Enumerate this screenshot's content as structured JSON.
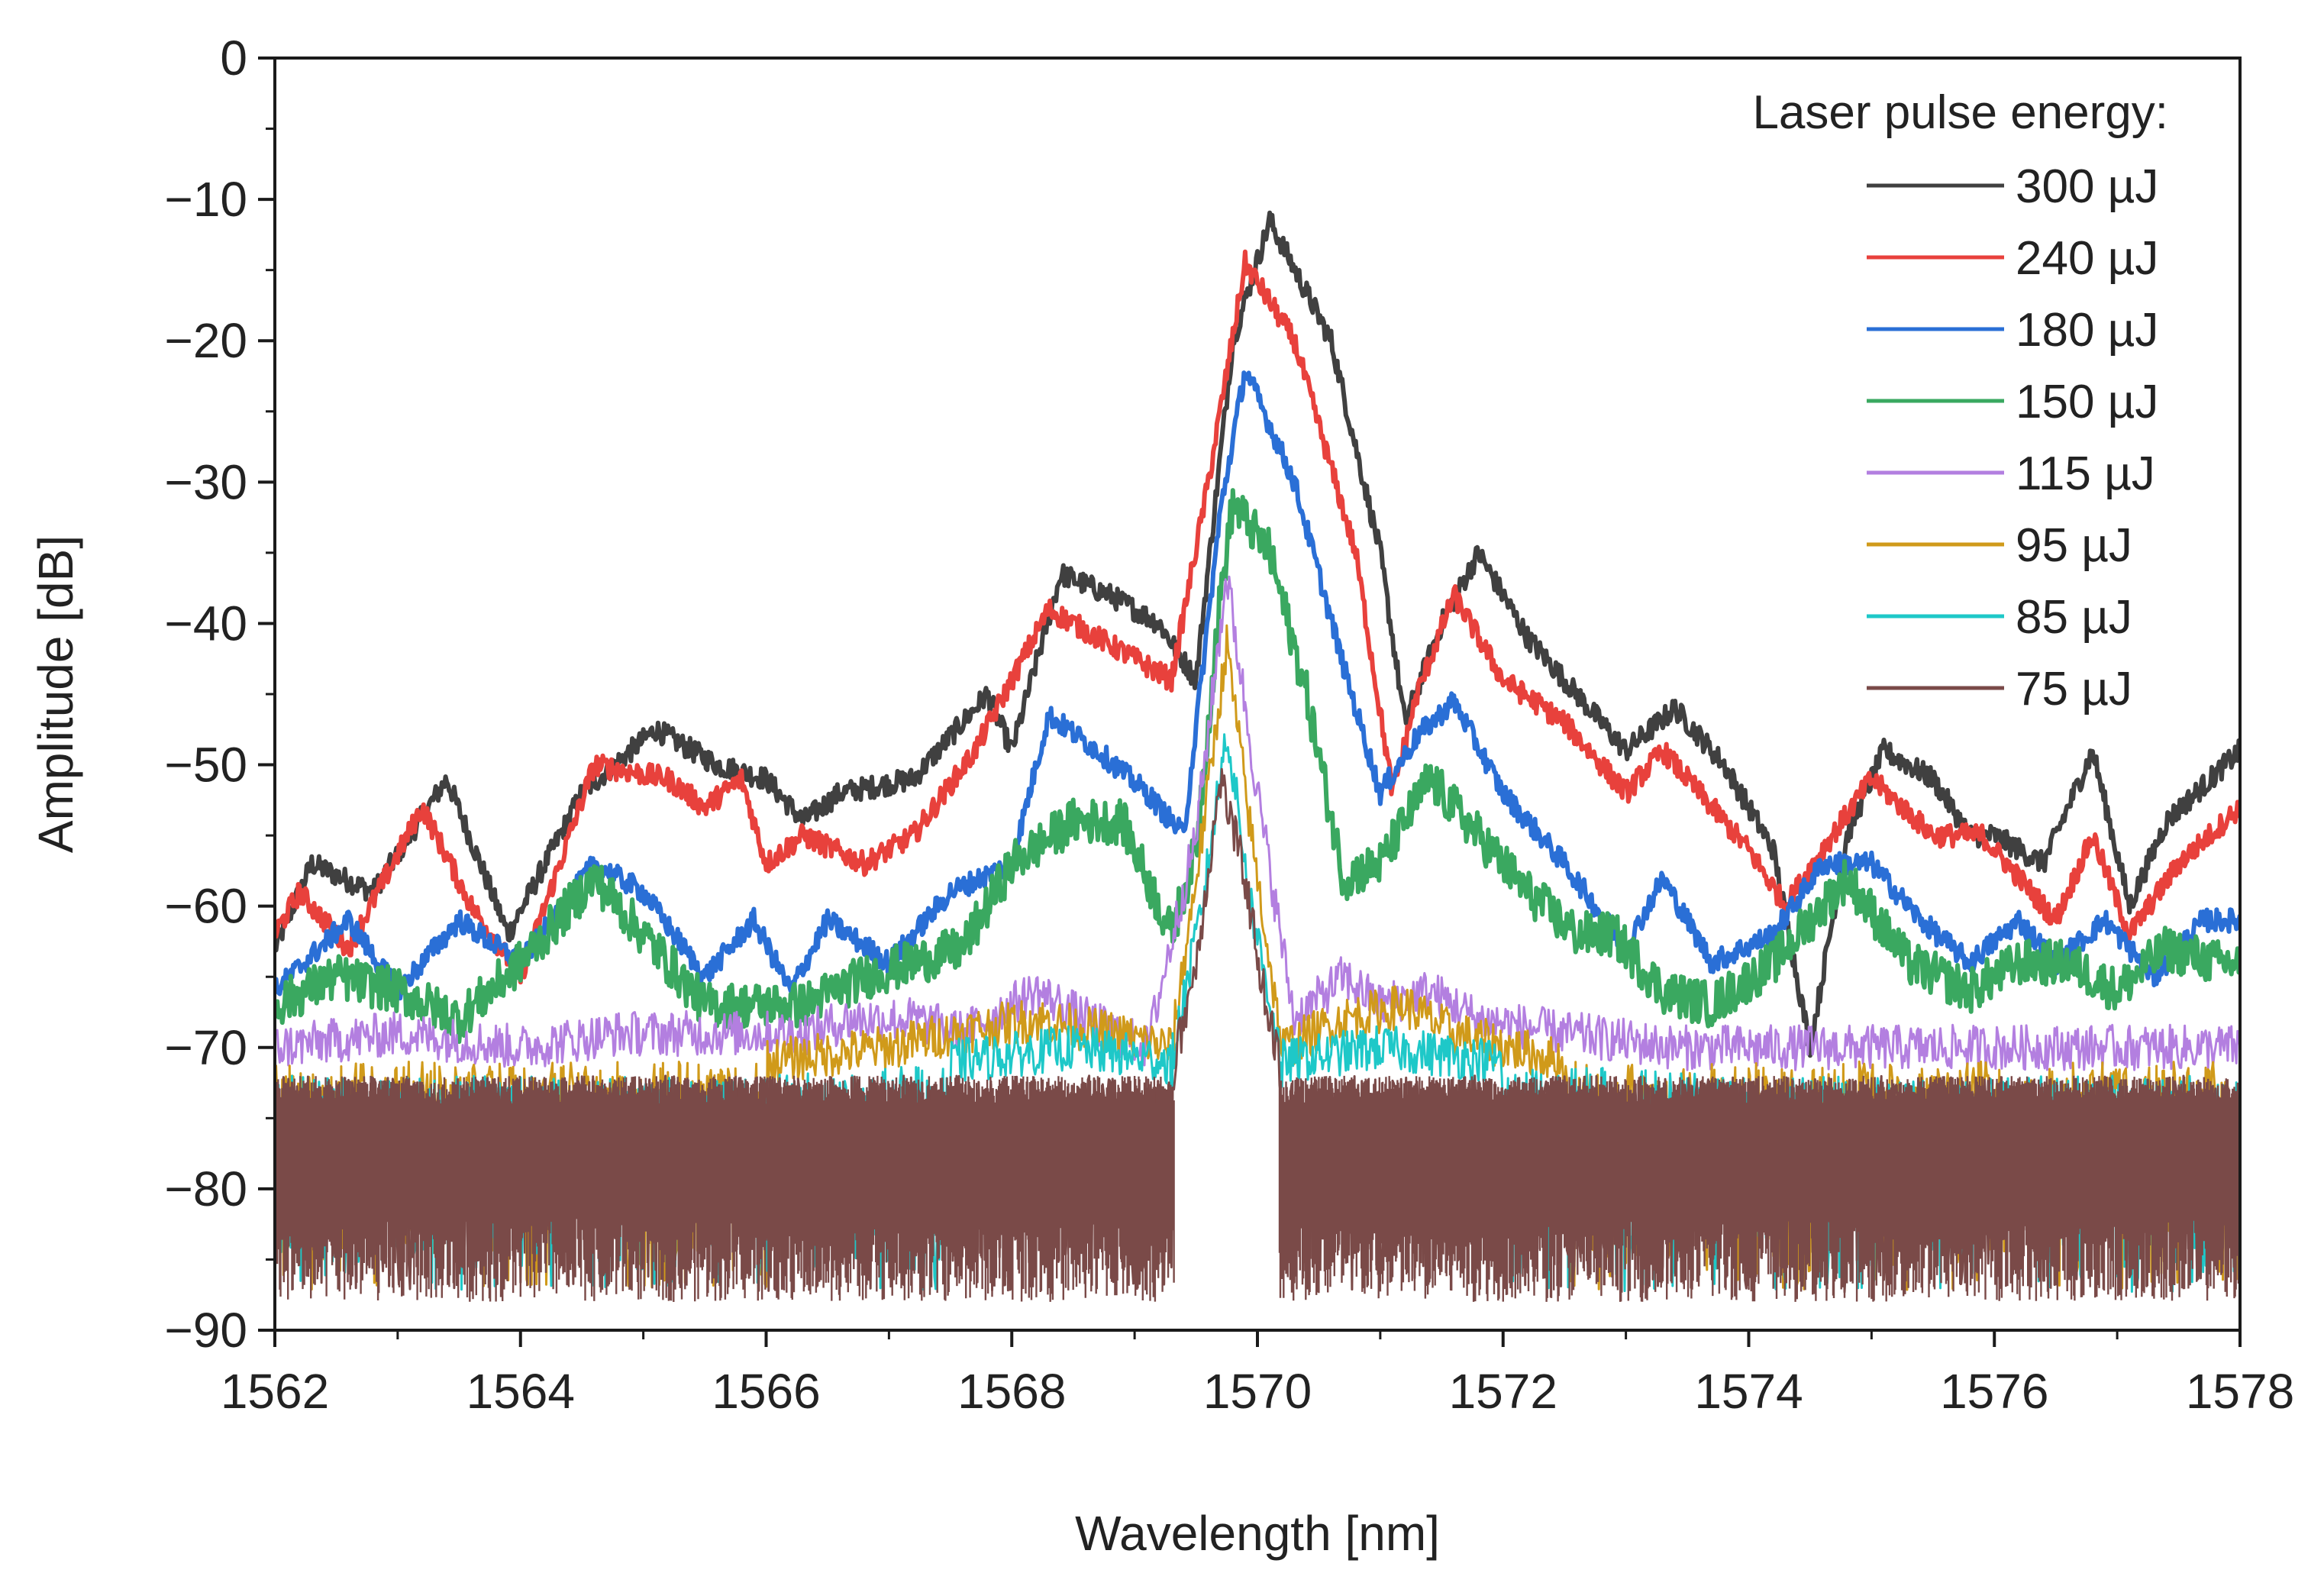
{
  "chart_data": {
    "type": "line",
    "title": "",
    "xlabel": "Wavelength [nm]",
    "ylabel": "Amplitude [dB]",
    "xlim": [
      1562,
      1578
    ],
    "ylim": [
      -90,
      0
    ],
    "x_ticks": [
      1562,
      1564,
      1566,
      1568,
      1570,
      1572,
      1574,
      1576,
      1578
    ],
    "y_ticks": [
      0,
      -10,
      -20,
      -30,
      -40,
      -50,
      -60,
      -70,
      -80,
      -90
    ],
    "y_tick_labels": [
      "0",
      "−10",
      "−20",
      "−30",
      "−40",
      "−50",
      "−60",
      "−70",
      "−80",
      "−90"
    ],
    "grid": false,
    "noise_floor": [
      -90,
      -72
    ],
    "legend": {
      "title": "Laser pulse energy:",
      "position": "top-right"
    },
    "series": [
      {
        "name": "300 µJ",
        "color": "#404040",
        "points": [
          [
            1562.0,
            -63
          ],
          [
            1562.3,
            -57
          ],
          [
            1562.8,
            -59
          ],
          [
            1563.4,
            -51
          ],
          [
            1563.9,
            -62
          ],
          [
            1564.5,
            -52
          ],
          [
            1565.1,
            -47.5
          ],
          [
            1565.6,
            -50
          ],
          [
            1566.0,
            -51
          ],
          [
            1566.3,
            -54
          ],
          [
            1566.6,
            -52
          ],
          [
            1567.2,
            -51
          ],
          [
            1567.8,
            -45
          ],
          [
            1568.0,
            -49
          ],
          [
            1568.4,
            -36.5
          ],
          [
            1568.8,
            -38
          ],
          [
            1569.2,
            -40
          ],
          [
            1569.5,
            -44
          ],
          [
            1569.8,
            -20
          ],
          [
            1570.1,
            -11.5
          ],
          [
            1570.6,
            -20
          ],
          [
            1571.0,
            -35
          ],
          [
            1571.2,
            -47
          ],
          [
            1571.5,
            -40
          ],
          [
            1571.8,
            -35
          ],
          [
            1572.2,
            -41
          ],
          [
            1572.7,
            -46
          ],
          [
            1573.0,
            -49
          ],
          [
            1573.4,
            -46
          ],
          [
            1573.8,
            -50
          ],
          [
            1574.2,
            -56
          ],
          [
            1574.5,
            -70
          ],
          [
            1574.8,
            -55
          ],
          [
            1575.1,
            -49
          ],
          [
            1575.5,
            -51
          ],
          [
            1575.8,
            -55
          ],
          [
            1576.0,
            -55
          ],
          [
            1576.4,
            -57
          ],
          [
            1576.8,
            -49
          ],
          [
            1577.1,
            -60
          ],
          [
            1577.4,
            -54
          ],
          [
            1578.0,
            -49
          ]
        ]
      },
      {
        "name": "240 µJ",
        "color": "#e8413c",
        "points": [
          [
            1562.0,
            -62
          ],
          [
            1562.2,
            -59
          ],
          [
            1562.6,
            -63
          ],
          [
            1563.2,
            -53
          ],
          [
            1563.6,
            -60
          ],
          [
            1564.0,
            -65
          ],
          [
            1564.6,
            -50
          ],
          [
            1565.2,
            -51
          ],
          [
            1565.5,
            -53
          ],
          [
            1565.8,
            -51
          ],
          [
            1566.0,
            -57
          ],
          [
            1566.3,
            -55
          ],
          [
            1566.8,
            -57
          ],
          [
            1567.2,
            -55
          ],
          [
            1567.7,
            -49
          ],
          [
            1568.3,
            -39
          ],
          [
            1568.7,
            -41
          ],
          [
            1569.3,
            -44
          ],
          [
            1569.6,
            -30
          ],
          [
            1569.9,
            -14.5
          ],
          [
            1570.3,
            -20
          ],
          [
            1570.8,
            -35
          ],
          [
            1571.1,
            -52
          ],
          [
            1571.3,
            -45
          ],
          [
            1571.6,
            -38
          ],
          [
            1572.0,
            -44
          ],
          [
            1572.5,
            -47
          ],
          [
            1573.0,
            -52
          ],
          [
            1573.3,
            -49
          ],
          [
            1573.6,
            -52
          ],
          [
            1574.0,
            -56
          ],
          [
            1574.3,
            -60
          ],
          [
            1574.6,
            -56
          ],
          [
            1575.0,
            -51
          ],
          [
            1575.5,
            -55
          ],
          [
            1575.9,
            -55
          ],
          [
            1576.2,
            -58
          ],
          [
            1576.5,
            -61
          ],
          [
            1576.8,
            -55
          ],
          [
            1577.1,
            -62
          ],
          [
            1577.5,
            -57
          ],
          [
            1578.0,
            -53
          ]
        ]
      },
      {
        "name": "180 µJ",
        "color": "#2a6fd6",
        "points": [
          [
            1562.0,
            -66
          ],
          [
            1562.6,
            -61
          ],
          [
            1563.0,
            -66
          ],
          [
            1563.5,
            -61
          ],
          [
            1564.0,
            -64
          ],
          [
            1564.6,
            -57
          ],
          [
            1565.0,
            -59
          ],
          [
            1565.5,
            -65
          ],
          [
            1565.9,
            -61
          ],
          [
            1566.2,
            -66
          ],
          [
            1566.5,
            -61
          ],
          [
            1567.0,
            -64
          ],
          [
            1567.5,
            -59
          ],
          [
            1568.0,
            -57
          ],
          [
            1568.3,
            -46.5
          ],
          [
            1568.7,
            -49
          ],
          [
            1569.1,
            -52
          ],
          [
            1569.4,
            -55
          ],
          [
            1569.7,
            -32
          ],
          [
            1569.9,
            -22
          ],
          [
            1570.3,
            -30
          ],
          [
            1570.7,
            -43
          ],
          [
            1571.0,
            -52
          ],
          [
            1571.3,
            -48
          ],
          [
            1571.6,
            -45.5
          ],
          [
            1572.0,
            -52
          ],
          [
            1572.5,
            -57
          ],
          [
            1573.0,
            -63
          ],
          [
            1573.3,
            -58
          ],
          [
            1573.7,
            -64
          ],
          [
            1574.2,
            -62
          ],
          [
            1574.6,
            -57
          ],
          [
            1575.0,
            -57
          ],
          [
            1575.4,
            -61
          ],
          [
            1575.8,
            -64
          ],
          [
            1576.2,
            -61
          ],
          [
            1576.5,
            -64
          ],
          [
            1576.9,
            -61
          ],
          [
            1577.3,
            -65
          ],
          [
            1577.7,
            -61
          ],
          [
            1578.0,
            -61
          ]
        ]
      },
      {
        "name": "150 µJ",
        "color": "#3aa860",
        "points": [
          [
            1562.0,
            -67
          ],
          [
            1562.5,
            -65
          ],
          [
            1563.0,
            -66
          ],
          [
            1563.5,
            -68
          ],
          [
            1564.0,
            -64
          ],
          [
            1564.6,
            -58
          ],
          [
            1565.0,
            -62
          ],
          [
            1565.5,
            -67
          ],
          [
            1566.0,
            -67
          ],
          [
            1566.3,
            -67
          ],
          [
            1566.8,
            -65
          ],
          [
            1567.2,
            -64
          ],
          [
            1567.6,
            -63
          ],
          [
            1568.0,
            -57
          ],
          [
            1568.5,
            -54
          ],
          [
            1568.9,
            -54
          ],
          [
            1569.3,
            -62
          ],
          [
            1569.5,
            -56
          ],
          [
            1569.7,
            -38
          ],
          [
            1569.8,
            -31.5
          ],
          [
            1570.1,
            -35
          ],
          [
            1570.4,
            -45
          ],
          [
            1570.7,
            -58
          ],
          [
            1571.0,
            -57
          ],
          [
            1571.4,
            -51
          ],
          [
            1571.8,
            -55
          ],
          [
            1572.2,
            -59
          ],
          [
            1572.6,
            -62
          ],
          [
            1572.9,
            -62
          ],
          [
            1573.3,
            -66
          ],
          [
            1573.7,
            -67
          ],
          [
            1574.2,
            -64
          ],
          [
            1574.8,
            -58
          ],
          [
            1575.3,
            -64
          ],
          [
            1575.8,
            -66
          ],
          [
            1576.2,
            -64
          ],
          [
            1576.6,
            -64
          ],
          [
            1577.0,
            -66
          ],
          [
            1577.4,
            -63
          ],
          [
            1577.8,
            -64
          ],
          [
            1578.0,
            -64
          ]
        ]
      },
      {
        "name": "115 µJ",
        "color": "#b37fe0",
        "points": [
          [
            1562.0,
            -70
          ],
          [
            1563.0,
            -69
          ],
          [
            1564.0,
            -70
          ],
          [
            1564.8,
            -69
          ],
          [
            1565.6,
            -69
          ],
          [
            1566.3,
            -69
          ],
          [
            1566.7,
            -68
          ],
          [
            1567.2,
            -68
          ],
          [
            1567.6,
            -69
          ],
          [
            1568.2,
            -66
          ],
          [
            1568.6,
            -68
          ],
          [
            1569.1,
            -70
          ],
          [
            1569.5,
            -55
          ],
          [
            1569.75,
            -36.5
          ],
          [
            1570.0,
            -52
          ],
          [
            1570.3,
            -68
          ],
          [
            1570.7,
            -65
          ],
          [
            1571.0,
            -67
          ],
          [
            1571.4,
            -66
          ],
          [
            1571.8,
            -68
          ],
          [
            1572.5,
            -69
          ],
          [
            1573.4,
            -70
          ],
          [
            1574.3,
            -70
          ],
          [
            1575.2,
            -70
          ],
          [
            1576.2,
            -70
          ],
          [
            1577.0,
            -70
          ],
          [
            1578.0,
            -70
          ]
        ]
      },
      {
        "name": "95 µJ",
        "color": "#d09a1a",
        "points": [
          [
            1562.0,
            -71
          ],
          [
            1563.0,
            -71
          ],
          [
            1564.0,
            -71
          ],
          [
            1565.0,
            -71
          ],
          [
            1566.0,
            -71
          ],
          [
            1567.0,
            -70
          ],
          [
            1567.5,
            -69
          ],
          [
            1568.2,
            -68
          ],
          [
            1568.8,
            -69
          ],
          [
            1569.3,
            -70
          ],
          [
            1569.55,
            -55
          ],
          [
            1569.75,
            -41.5
          ],
          [
            1569.95,
            -55
          ],
          [
            1570.2,
            -70
          ],
          [
            1570.7,
            -68
          ],
          [
            1571.2,
            -67
          ],
          [
            1571.6,
            -69
          ],
          [
            1572.5,
            -71
          ],
          [
            1573.5,
            -71
          ],
          [
            1574.5,
            -71
          ],
          [
            1575.5,
            -71
          ],
          [
            1576.5,
            -71
          ],
          [
            1578.0,
            -71
          ]
        ]
      },
      {
        "name": "85 µJ",
        "color": "#1ec8c8",
        "points": [
          [
            1562.0,
            -72
          ],
          [
            1564.0,
            -72
          ],
          [
            1566.0,
            -72
          ],
          [
            1567.5,
            -71
          ],
          [
            1568.5,
            -70
          ],
          [
            1569.3,
            -71
          ],
          [
            1569.55,
            -60
          ],
          [
            1569.75,
            -47.5
          ],
          [
            1569.95,
            -60
          ],
          [
            1570.2,
            -71
          ],
          [
            1571.0,
            -70
          ],
          [
            1572.0,
            -71
          ],
          [
            1574.0,
            -72
          ],
          [
            1576.0,
            -72
          ],
          [
            1578.0,
            -72
          ]
        ]
      },
      {
        "name": "75 µJ",
        "color": "#7a4a48",
        "points": [
          [
            1562.0,
            -72
          ],
          [
            1565.0,
            -72
          ],
          [
            1568.0,
            -72
          ],
          [
            1569.3,
            -72
          ],
          [
            1569.5,
            -64
          ],
          [
            1569.7,
            -51
          ],
          [
            1569.9,
            -58
          ],
          [
            1570.05,
            -66
          ],
          [
            1570.2,
            -72
          ],
          [
            1572.0,
            -72
          ],
          [
            1575.0,
            -72
          ],
          [
            1578.0,
            -72
          ]
        ]
      }
    ]
  }
}
